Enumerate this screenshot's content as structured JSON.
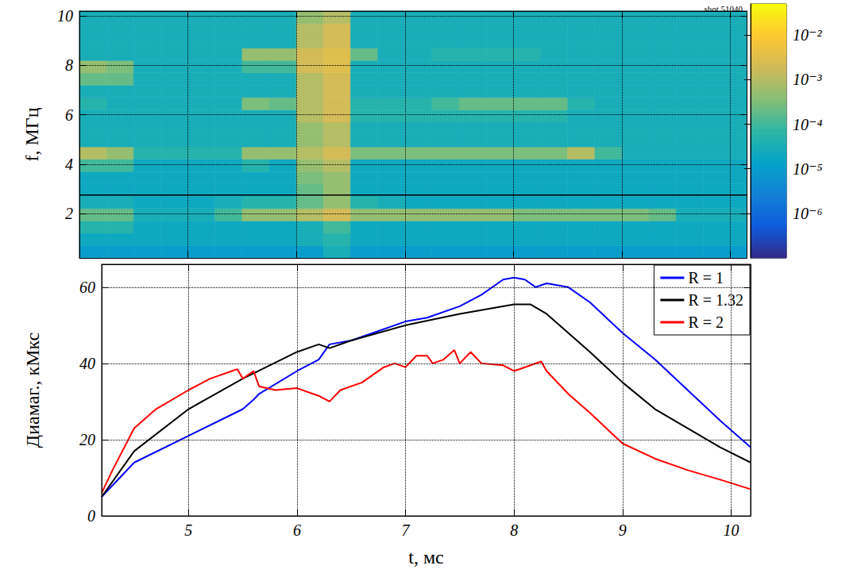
{
  "chart_data": [
    {
      "type": "heatmap",
      "title": "shot 51040",
      "ylabel": "f, МГц",
      "xlim": [
        4.0,
        10.15
      ],
      "xticks": [
        5,
        6,
        7,
        8,
        9,
        10
      ],
      "ylim": [
        0.2,
        10.2
      ],
      "yticks": [
        2,
        4,
        6,
        8,
        10
      ],
      "grid": true,
      "tick_labels": "y",
      "hline": 2.75,
      "t_bins": [
        4.0,
        4.25,
        4.5,
        4.75,
        5.0,
        5.25,
        5.5,
        5.75,
        6.0,
        6.25,
        6.5,
        6.75,
        7.0,
        7.25,
        7.5,
        7.75,
        8.0,
        8.25,
        8.5,
        8.75,
        9.0,
        9.25,
        9.5,
        9.75,
        10.0,
        10.25
      ],
      "f_bins": [
        0.2,
        0.7,
        1.2,
        1.7,
        2.2,
        2.7,
        3.2,
        3.7,
        4.2,
        4.7,
        5.2,
        5.7,
        6.2,
        6.7,
        7.2,
        7.7,
        8.2,
        8.7,
        9.2,
        9.7,
        10.2
      ],
      "cells": [
        [
          1e-05,
          1e-05,
          1e-05,
          1e-05,
          1e-05,
          1e-05,
          1e-05,
          1e-05,
          1e-05,
          3e-05,
          1e-05,
          1e-05,
          1e-05,
          1e-05,
          1e-05,
          1e-05,
          1e-05,
          1e-05,
          1e-05,
          1e-05,
          1e-05,
          1e-05,
          1e-05,
          1e-05,
          1e-05
        ],
        [
          2e-05,
          2e-05,
          2e-05,
          2e-05,
          2e-05,
          2e-05,
          2e-05,
          2e-05,
          3e-05,
          5e-05,
          2e-05,
          2e-05,
          2e-05,
          2e-05,
          2e-05,
          2e-05,
          2e-05,
          2e-05,
          2e-05,
          2e-05,
          2e-05,
          2e-05,
          2e-05,
          2e-05,
          2e-05
        ],
        [
          5e-05,
          5e-05,
          2e-05,
          2e-05,
          2e-05,
          2e-05,
          2e-05,
          2e-05,
          3e-05,
          0.0001,
          2e-05,
          2e-05,
          2e-05,
          2e-05,
          2e-05,
          2e-05,
          2e-05,
          2e-05,
          2e-05,
          2e-05,
          2e-05,
          2e-05,
          2e-05,
          2e-05,
          2e-05
        ],
        [
          0.0002,
          0.0002,
          3e-05,
          3e-05,
          3e-05,
          0.0001,
          0.0005,
          0.0005,
          0.001,
          0.002,
          0.0005,
          0.0005,
          0.0005,
          0.0005,
          0.0005,
          0.0005,
          0.0003,
          0.0003,
          0.0003,
          0.0003,
          0.0003,
          0.0002,
          3e-05,
          3e-05,
          3e-05
        ],
        [
          3e-05,
          3e-05,
          2e-05,
          2e-05,
          2e-05,
          3e-05,
          5e-05,
          5e-05,
          0.0002,
          0.0005,
          5e-05,
          3e-05,
          2e-05,
          2e-05,
          2e-05,
          2e-05,
          2e-05,
          2e-05,
          2e-05,
          2e-05,
          2e-05,
          2e-05,
          2e-05,
          2e-05,
          2e-05
        ],
        [
          2e-05,
          2e-05,
          2e-05,
          2e-05,
          2e-05,
          2e-05,
          2e-05,
          2e-05,
          0.0002,
          0.0005,
          2e-05,
          2e-05,
          2e-05,
          2e-05,
          2e-05,
          2e-05,
          2e-05,
          2e-05,
          2e-05,
          2e-05,
          2e-05,
          2e-05,
          2e-05,
          2e-05,
          2e-05
        ],
        [
          2e-05,
          2e-05,
          2e-05,
          2e-05,
          2e-05,
          2e-05,
          2e-05,
          2e-05,
          0.0003,
          0.0005,
          2e-05,
          2e-05,
          2e-05,
          2e-05,
          2e-05,
          2e-05,
          2e-05,
          2e-05,
          2e-05,
          2e-05,
          2e-05,
          2e-05,
          2e-05,
          2e-05,
          2e-05
        ],
        [
          0.0001,
          0.0001,
          2e-05,
          2e-05,
          2e-05,
          2e-05,
          5e-05,
          2e-05,
          0.0005,
          0.001,
          2e-05,
          2e-05,
          2e-05,
          2e-05,
          2e-05,
          2e-05,
          2e-05,
          2e-05,
          2e-05,
          2e-05,
          2e-05,
          2e-05,
          2e-05,
          2e-05,
          2e-05
        ],
        [
          0.001,
          0.0005,
          5e-05,
          5e-05,
          5e-05,
          5e-05,
          0.0005,
          0.0005,
          0.001,
          0.002,
          0.0003,
          0.0003,
          0.0003,
          0.0003,
          0.0003,
          0.0003,
          0.0003,
          0.0003,
          0.001,
          0.0001,
          3e-05,
          3e-05,
          3e-05,
          3e-05,
          3e-05
        ],
        [
          3e-05,
          3e-05,
          3e-05,
          3e-05,
          3e-05,
          3e-05,
          3e-05,
          3e-05,
          0.0005,
          0.001,
          3e-05,
          3e-05,
          3e-05,
          3e-05,
          3e-05,
          3e-05,
          3e-05,
          3e-05,
          3e-05,
          3e-05,
          3e-05,
          3e-05,
          3e-05,
          3e-05,
          3e-05
        ],
        [
          3e-05,
          3e-05,
          3e-05,
          3e-05,
          3e-05,
          3e-05,
          3e-05,
          3e-05,
          0.0005,
          0.001,
          3e-05,
          3e-05,
          3e-05,
          3e-05,
          3e-05,
          3e-05,
          3e-05,
          3e-05,
          3e-05,
          3e-05,
          3e-05,
          3e-05,
          3e-05,
          3e-05,
          3e-05
        ],
        [
          3e-05,
          3e-05,
          3e-05,
          3e-05,
          3e-05,
          3e-05,
          3e-05,
          3e-05,
          0.001,
          0.002,
          5e-05,
          5e-05,
          5e-05,
          5e-05,
          5e-05,
          5e-05,
          5e-05,
          5e-05,
          3e-05,
          3e-05,
          3e-05,
          3e-05,
          3e-05,
          3e-05,
          3e-05
        ],
        [
          5e-05,
          3e-05,
          3e-05,
          3e-05,
          3e-05,
          3e-05,
          0.0003,
          0.0002,
          0.001,
          0.002,
          5e-05,
          5e-05,
          5e-05,
          0.0001,
          0.0002,
          0.0002,
          0.0002,
          0.0002,
          5e-05,
          3e-05,
          3e-05,
          3e-05,
          3e-05,
          3e-05,
          3e-05
        ],
        [
          3e-05,
          3e-05,
          3e-05,
          3e-05,
          3e-05,
          3e-05,
          3e-05,
          3e-05,
          0.001,
          0.002,
          3e-05,
          3e-05,
          3e-05,
          3e-05,
          3e-05,
          3e-05,
          3e-05,
          3e-05,
          3e-05,
          3e-05,
          3e-05,
          3e-05,
          3e-05,
          3e-05,
          3e-05
        ],
        [
          0.0002,
          0.0002,
          3e-05,
          3e-05,
          3e-05,
          3e-05,
          3e-05,
          3e-05,
          0.001,
          0.002,
          3e-05,
          3e-05,
          3e-05,
          3e-05,
          3e-05,
          3e-05,
          3e-05,
          3e-05,
          3e-05,
          3e-05,
          3e-05,
          3e-05,
          3e-05,
          3e-05,
          3e-05
        ],
        [
          0.0005,
          0.0003,
          3e-05,
          3e-05,
          3e-05,
          3e-05,
          0.0001,
          0.0001,
          0.002,
          0.003,
          3e-05,
          3e-05,
          3e-05,
          3e-05,
          3e-05,
          3e-05,
          3e-05,
          3e-05,
          3e-05,
          3e-05,
          3e-05,
          3e-05,
          3e-05,
          3e-05,
          3e-05
        ],
        [
          3e-05,
          3e-05,
          3e-05,
          3e-05,
          3e-05,
          3e-05,
          0.0005,
          0.0005,
          0.002,
          0.003,
          0.0002,
          3e-05,
          3e-05,
          5e-05,
          5e-05,
          5e-05,
          5e-05,
          3e-05,
          3e-05,
          3e-05,
          3e-05,
          3e-05,
          3e-05,
          3e-05,
          3e-05
        ],
        [
          3e-05,
          3e-05,
          3e-05,
          3e-05,
          3e-05,
          3e-05,
          3e-05,
          3e-05,
          0.001,
          0.002,
          3e-05,
          3e-05,
          3e-05,
          3e-05,
          3e-05,
          3e-05,
          3e-05,
          3e-05,
          3e-05,
          3e-05,
          3e-05,
          3e-05,
          3e-05,
          3e-05,
          3e-05
        ],
        [
          3e-05,
          3e-05,
          3e-05,
          3e-05,
          3e-05,
          3e-05,
          3e-05,
          3e-05,
          0.001,
          0.002,
          3e-05,
          3e-05,
          3e-05,
          3e-05,
          3e-05,
          3e-05,
          3e-05,
          3e-05,
          3e-05,
          3e-05,
          3e-05,
          3e-05,
          3e-05,
          3e-05,
          3e-05
        ],
        [
          3e-05,
          3e-05,
          3e-05,
          3e-05,
          3e-05,
          3e-05,
          3e-05,
          3e-05,
          0.0005,
          0.001,
          3e-05,
          3e-05,
          3e-05,
          3e-05,
          3e-05,
          3e-05,
          3e-05,
          3e-05,
          3e-05,
          3e-05,
          3e-05,
          3e-05,
          3e-05,
          3e-05,
          3e-05
        ]
      ],
      "colorbar": {
        "range": [
          1e-07,
          0.05
        ],
        "log": true,
        "ticks": [
          {
            "value": 1e-06,
            "label": "10⁻⁶"
          },
          {
            "value": 1e-05,
            "label": "10⁻⁵"
          },
          {
            "value": 0.0001,
            "label": "10⁻⁴"
          },
          {
            "value": 0.001,
            "label": "10⁻³"
          },
          {
            "value": 0.01,
            "label": "10⁻²"
          }
        ]
      }
    },
    {
      "type": "line",
      "xlabel": "t, мс",
      "ylabel": "Диамаг., кМкс",
      "xlim": [
        4.2,
        10.18
      ],
      "xticks": [
        5,
        6,
        7,
        8,
        9,
        10
      ],
      "ylim": [
        0,
        66
      ],
      "yticks": [
        0,
        20,
        40,
        60
      ],
      "grid": true,
      "legend": "upper right",
      "series": [
        {
          "name": "R = 1",
          "color": "#0000ff",
          "x": [
            4.2,
            4.5,
            5.0,
            5.5,
            5.6,
            5.65,
            6.0,
            6.2,
            6.3,
            6.5,
            6.7,
            7.0,
            7.2,
            7.5,
            7.7,
            7.9,
            8.0,
            8.1,
            8.2,
            8.3,
            8.5,
            8.7,
            9.0,
            9.3,
            9.6,
            9.9,
            10.18
          ],
          "values": [
            5,
            14,
            21,
            28,
            30.5,
            32,
            38,
            41,
            45,
            46,
            48,
            51,
            52,
            55,
            58,
            62,
            62.5,
            62,
            60,
            61,
            60,
            56,
            48,
            41,
            33,
            25,
            18
          ]
        },
        {
          "name": "R = 1.32",
          "color": "#000000",
          "x": [
            4.2,
            4.5,
            5.0,
            5.5,
            6.0,
            6.2,
            6.3,
            6.5,
            7.0,
            7.5,
            8.0,
            8.15,
            8.3,
            8.5,
            8.7,
            9.0,
            9.3,
            9.6,
            9.9,
            10.18
          ],
          "values": [
            5,
            17,
            28,
            36,
            43,
            45,
            44,
            46,
            50,
            53,
            55.5,
            55.5,
            53,
            48,
            43,
            35,
            28,
            23,
            18,
            14
          ]
        },
        {
          "name": "R = 2",
          "color": "#ff0000",
          "x": [
            4.2,
            4.3,
            4.5,
            4.7,
            5.0,
            5.2,
            5.4,
            5.45,
            5.5,
            5.6,
            5.65,
            5.8,
            6.0,
            6.2,
            6.3,
            6.4,
            6.6,
            6.8,
            6.9,
            7.0,
            7.1,
            7.2,
            7.25,
            7.35,
            7.45,
            7.5,
            7.6,
            7.7,
            7.9,
            8.0,
            8.1,
            8.25,
            8.3,
            8.5,
            8.7,
            9.0,
            9.3,
            9.6,
            9.9,
            10.18
          ],
          "values": [
            6,
            12,
            23,
            28,
            33,
            36,
            38,
            38.5,
            36,
            38,
            34,
            33,
            33.5,
            31.5,
            30,
            33,
            35,
            39,
            40,
            39,
            42,
            42,
            40,
            41,
            43.5,
            40,
            43,
            40,
            39.5,
            38,
            39,
            40.5,
            38,
            32,
            27,
            19,
            15,
            12,
            9.5,
            7
          ]
        }
      ]
    }
  ]
}
